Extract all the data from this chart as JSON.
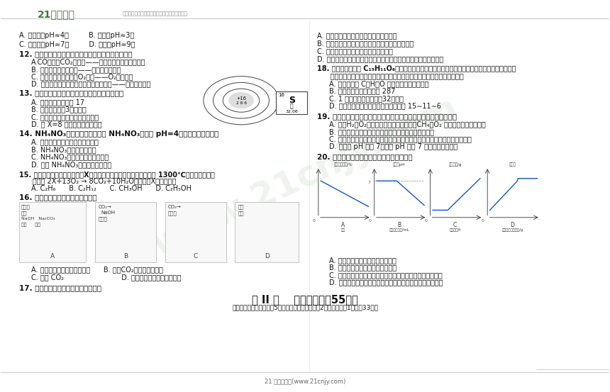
{
  "bg_color": "#ffffff",
  "header_line_color": "#cccccc",
  "footer_line_color": "#cccccc",
  "logo_text": "21世纪教育",
  "logo_color": "#3a7a3a",
  "tagline": "中国最大型、最专业的中小学教育资源门户网站",
  "tagline_color": "#888888",
  "watermark_text": "www.21cnjy.com",
  "watermark_color": "#c8d8c8",
  "watermark_alpha": 0.3,
  "footer_text": "21 世纪教育网(www.21cnjy.com)",
  "footer_color": "#666666",
  "text_color": "#111111",
  "section_title": "第 II 卷    非选择题（共55分）",
  "section_subtitle": "二、填空与简答（本大题5个小题，化学方程式每穰2分，其余每穰1分，共33分）",
  "divider_color": "#555555"
}
